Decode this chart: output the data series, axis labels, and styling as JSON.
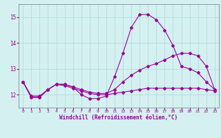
{
  "xlabel": "Windchill (Refroidissement éolien,°C)",
  "xlim": [
    -0.5,
    23.5
  ],
  "ylim": [
    11.5,
    15.5
  ],
  "yticks": [
    12,
    13,
    14,
    15
  ],
  "xticks": [
    0,
    1,
    2,
    3,
    4,
    5,
    6,
    7,
    8,
    9,
    10,
    11,
    12,
    13,
    14,
    15,
    16,
    17,
    18,
    19,
    20,
    21,
    22,
    23
  ],
  "background_color": "#d4f0f0",
  "grid_color": "#b0d8d8",
  "line_color": "#990099",
  "series": [
    {
      "x": [
        0,
        1,
        2,
        3,
        4,
        5,
        6,
        7,
        8,
        9,
        10,
        11,
        12,
        13,
        14,
        15,
        16,
        17,
        18,
        19,
        20,
        21,
        22,
        23
      ],
      "y": [
        12.5,
        11.9,
        11.9,
        12.2,
        12.4,
        12.4,
        12.3,
        12.0,
        11.85,
        11.85,
        11.95,
        12.7,
        13.6,
        14.6,
        15.1,
        15.1,
        14.9,
        14.5,
        13.9,
        13.1,
        13.0,
        12.85,
        12.5,
        12.2
      ]
    },
    {
      "x": [
        0,
        1,
        2,
        3,
        4,
        5,
        6,
        7,
        8,
        9,
        10,
        11,
        12,
        13,
        14,
        15,
        16,
        17,
        18,
        19,
        20,
        21,
        22,
        23
      ],
      "y": [
        12.5,
        11.9,
        11.9,
        12.2,
        12.4,
        12.4,
        12.3,
        12.2,
        12.1,
        12.05,
        12.05,
        12.2,
        12.5,
        12.75,
        12.95,
        13.1,
        13.2,
        13.35,
        13.5,
        13.6,
        13.6,
        13.5,
        13.1,
        12.2
      ]
    },
    {
      "x": [
        0,
        1,
        2,
        3,
        4,
        5,
        6,
        7,
        8,
        9,
        10,
        11,
        12,
        13,
        14,
        15,
        16,
        17,
        18,
        19,
        20,
        21,
        22,
        23
      ],
      "y": [
        12.5,
        11.95,
        11.95,
        12.2,
        12.4,
        12.35,
        12.25,
        12.15,
        12.05,
        12.0,
        12.0,
        12.05,
        12.1,
        12.15,
        12.2,
        12.25,
        12.25,
        12.25,
        12.25,
        12.25,
        12.25,
        12.25,
        12.2,
        12.15
      ]
    }
  ]
}
